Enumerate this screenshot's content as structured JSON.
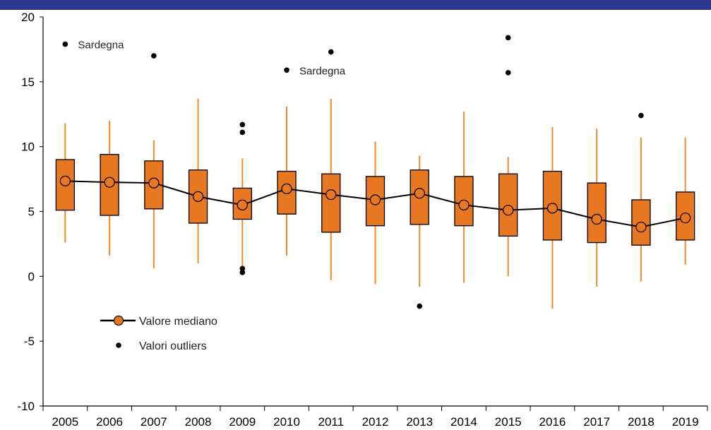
{
  "chart_data": {
    "type": "boxplot",
    "title": "",
    "xlabel": "",
    "ylabel": "",
    "ylim": [
      -10,
      20
    ],
    "yticks": [
      "-10",
      "-5",
      "0",
      "5",
      "10",
      "15",
      "20"
    ],
    "categories": [
      "2005",
      "2006",
      "2007",
      "2008",
      "2009",
      "2010",
      "2011",
      "2012",
      "2013",
      "2014",
      "2015",
      "2016",
      "2017",
      "2018",
      "2019"
    ],
    "boxes": [
      {
        "min": 2.6,
        "q1": 5.1,
        "median": 7.35,
        "q3": 9.0,
        "max": 11.8
      },
      {
        "min": 1.6,
        "q1": 4.7,
        "median": 7.25,
        "q3": 9.4,
        "max": 12.0
      },
      {
        "min": 0.6,
        "q1": 5.2,
        "median": 7.2,
        "q3": 8.9,
        "max": 10.5
      },
      {
        "min": 1.0,
        "q1": 4.1,
        "median": 6.15,
        "q3": 8.2,
        "max": 13.7
      },
      {
        "min": 0.8,
        "q1": 4.4,
        "median": 5.5,
        "q3": 6.8,
        "max": 9.1
      },
      {
        "min": 1.6,
        "q1": 4.8,
        "median": 6.75,
        "q3": 8.1,
        "max": 13.1
      },
      {
        "min": -0.3,
        "q1": 3.4,
        "median": 6.3,
        "q3": 7.9,
        "max": 13.7
      },
      {
        "min": -0.6,
        "q1": 3.9,
        "median": 5.9,
        "q3": 7.7,
        "max": 10.4
      },
      {
        "min": -0.8,
        "q1": 4.0,
        "median": 6.4,
        "q3": 8.2,
        "max": 9.3
      },
      {
        "min": -0.5,
        "q1": 3.9,
        "median": 5.5,
        "q3": 7.7,
        "max": 12.7
      },
      {
        "min": 0.0,
        "q1": 3.1,
        "median": 5.1,
        "q3": 7.9,
        "max": 9.2
      },
      {
        "min": -2.5,
        "q1": 2.8,
        "median": 5.25,
        "q3": 8.1,
        "max": 11.5
      },
      {
        "min": -0.8,
        "q1": 2.6,
        "median": 4.4,
        "q3": 7.2,
        "max": 11.4
      },
      {
        "min": -0.4,
        "q1": 2.4,
        "median": 3.8,
        "q3": 5.9,
        "max": 10.7
      },
      {
        "min": 0.9,
        "q1": 2.8,
        "median": 4.5,
        "q3": 6.5,
        "max": 10.7
      }
    ],
    "outliers": [
      {
        "category": "2005",
        "value": 17.9,
        "label": "Sardegna"
      },
      {
        "category": "2007",
        "value": 17.0,
        "label": ""
      },
      {
        "category": "2009",
        "value": 11.7,
        "label": ""
      },
      {
        "category": "2009",
        "value": 11.1,
        "label": ""
      },
      {
        "category": "2009",
        "value": 0.6,
        "label": ""
      },
      {
        "category": "2009",
        "value": 0.3,
        "label": ""
      },
      {
        "category": "2010",
        "value": 15.9,
        "label": "Sardegna"
      },
      {
        "category": "2011",
        "value": 17.3,
        "label": ""
      },
      {
        "category": "2013",
        "value": -2.3,
        "label": ""
      },
      {
        "category": "2015",
        "value": 18.4,
        "label": ""
      },
      {
        "category": "2015",
        "value": 15.7,
        "label": ""
      },
      {
        "category": "2018",
        "value": 12.4,
        "label": ""
      }
    ],
    "legend": {
      "position": "bottom-left",
      "entries": [
        "Valore mediano",
        "Valori outliers"
      ]
    },
    "colors": {
      "box": "#e87722",
      "whisker": "#f08a2a",
      "median_line": "#000000",
      "outlier": "#000000",
      "header_band": "#2b3a8f"
    },
    "grid": false
  }
}
